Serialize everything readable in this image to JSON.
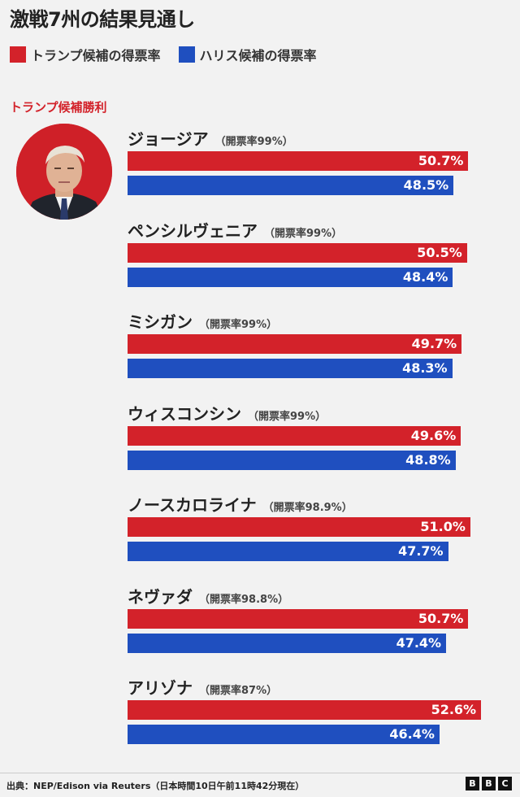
{
  "title": "激戦7州の結果見通し",
  "legend": {
    "trump": "トランプ候補の得票率",
    "harris": "ハリス候補の得票率"
  },
  "winner_label": "トランプ候補勝利",
  "colors": {
    "trump": "#d3222a",
    "harris": "#1f4fbf"
  },
  "chart_data": {
    "type": "bar",
    "orientation": "horizontal",
    "categories": [
      "ジョージア",
      "ペンシルヴェニア",
      "ミシガン",
      "ウィスコンシン",
      "ノースカロライナ",
      "ネヴァダ",
      "アリゾナ"
    ],
    "reporting": [
      "（開票率99%）",
      "（開票率99%）",
      "（開票率99%）",
      "（開票率99%）",
      "（開票率98.9%）",
      "（開票率98.8%）",
      "（開票率87%）"
    ],
    "series": [
      {
        "name": "トランプ候補の得票率",
        "values": [
          50.7,
          50.5,
          49.7,
          49.6,
          51.0,
          50.7,
          52.6
        ],
        "labels": [
          "50.7%",
          "50.5%",
          "49.7%",
          "49.6%",
          "51.0%",
          "50.7%",
          "52.6%"
        ]
      },
      {
        "name": "ハリス候補の得票率",
        "values": [
          48.5,
          48.4,
          48.3,
          48.8,
          47.7,
          47.4,
          46.4
        ],
        "labels": [
          "48.5%",
          "48.4%",
          "48.3%",
          "48.8%",
          "47.7%",
          "47.4%",
          "46.4%"
        ]
      }
    ]
  },
  "footer": {
    "source": "出典：NEP/Edison via Reuters（日本時間10日午前11時42分現在）",
    "logo": [
      "B",
      "B",
      "C"
    ]
  }
}
